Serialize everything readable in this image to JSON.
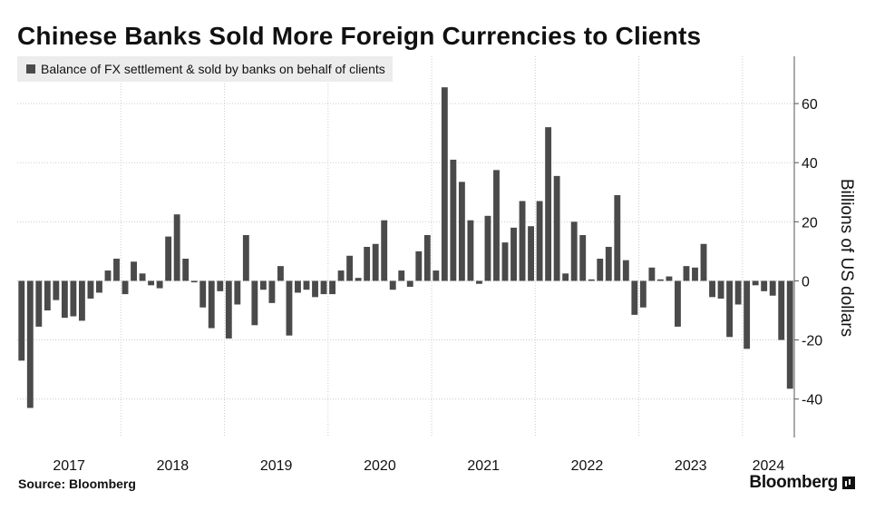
{
  "header": {
    "title": "Chinese Banks Sold More Foreign Currencies to Clients"
  },
  "footer": {
    "source": "Source: Bloomberg",
    "brand": "Bloomberg"
  },
  "colors": {
    "bar": "#4a4a4a",
    "grid": "#cccccc",
    "legend_bg": "#ececec"
  },
  "chart_data": {
    "type": "bar",
    "title": "Chinese Banks Sold More Foreign Currencies to Clients",
    "series": [
      {
        "name": "Balance of FX settlement & sold by banks on behalf of clients",
        "values": [
          -27,
          -43,
          -15.5,
          -10,
          -6.5,
          -12.5,
          -12,
          -13.5,
          -6,
          -4,
          3.5,
          7.5,
          -4.5,
          6.5,
          2.5,
          -1.5,
          -2.5,
          15,
          22.5,
          7.5,
          -0.5,
          -9,
          -16,
          -3.5,
          -19.5,
          -8,
          15.5,
          -15,
          -3,
          -7.5,
          5,
          -18.5,
          -4,
          -3,
          -5.5,
          -4.5,
          -4.5,
          3.5,
          8.5,
          1,
          11.5,
          12.5,
          20.5,
          -3,
          3.5,
          -2,
          10,
          15.5,
          3.5,
          65.5,
          41,
          33.5,
          20.5,
          -1,
          22,
          37.5,
          13,
          18,
          27,
          18.5,
          27,
          52,
          35.5,
          2.5,
          20,
          15.5,
          0.5,
          7.5,
          11.5,
          29,
          7,
          -11.5,
          -9,
          4.5,
          0.5,
          1.5,
          -15.5,
          5,
          4.5,
          12.5,
          -5.5,
          -6,
          -19,
          -8,
          -23,
          -1.5,
          -3.5,
          -5,
          -20,
          -36.5
        ]
      }
    ],
    "start": "2017-01",
    "x_tick_labels": [
      "2017",
      "2018",
      "2019",
      "2020",
      "2021",
      "2022",
      "2023",
      "2024"
    ],
    "ylabel": "Billions of US dollars",
    "yticks": [
      60,
      40,
      20,
      0,
      -20,
      -40
    ],
    "ylim": [
      -53,
      76
    ],
    "grid": true,
    "legend": "top-left",
    "y_axis_position": "right"
  }
}
